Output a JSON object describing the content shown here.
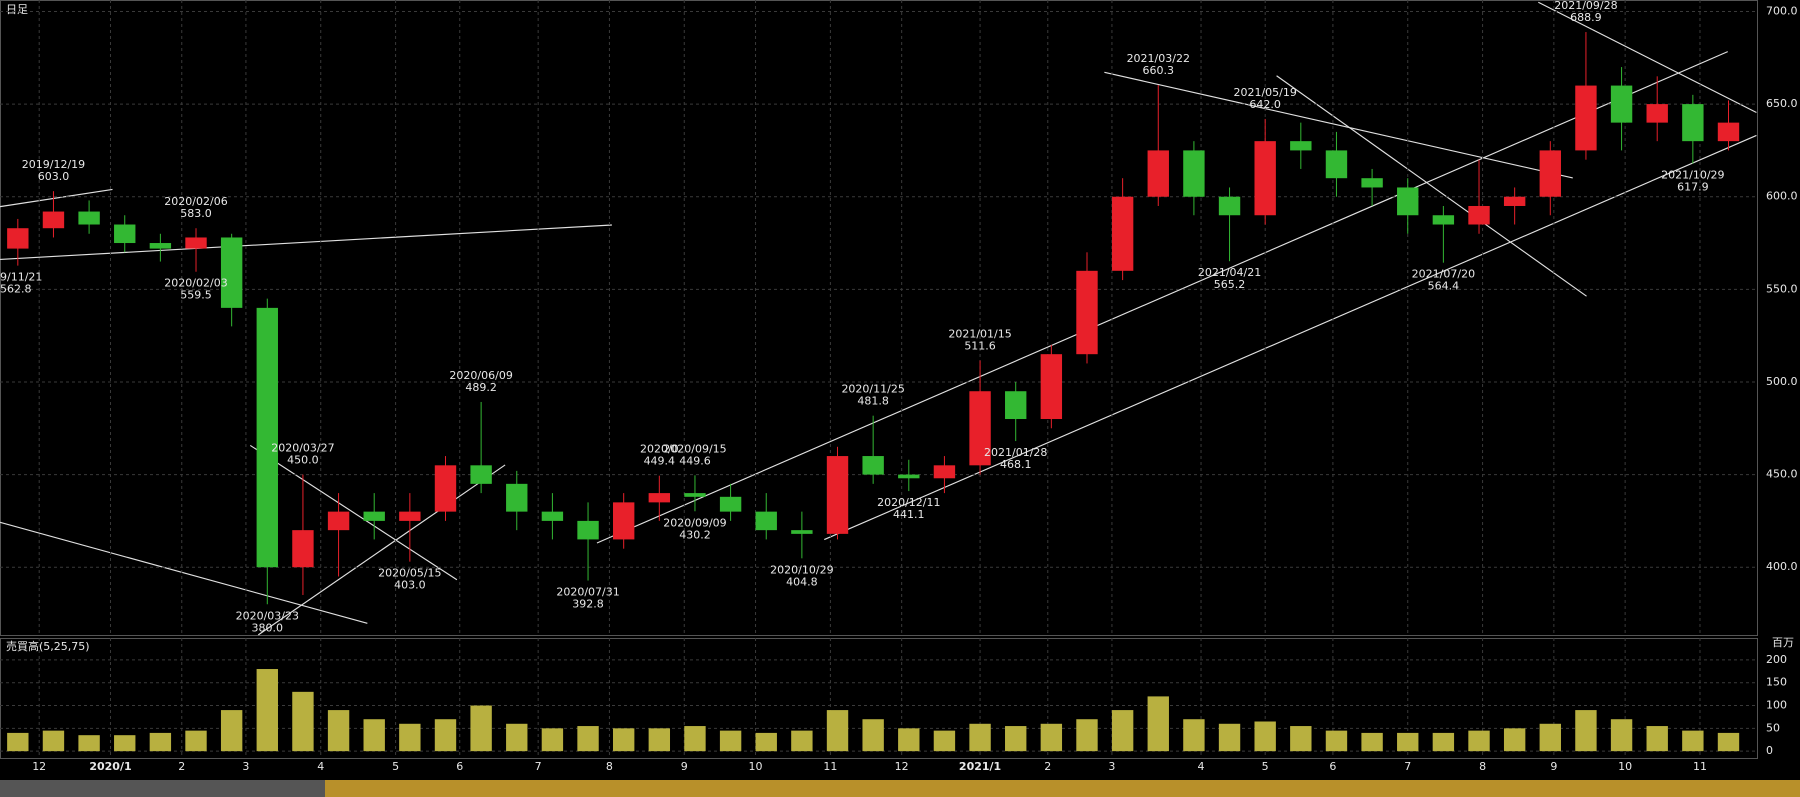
{
  "chart_data": [
    {
      "type": "candlestick",
      "panel_label": "日足",
      "open": [
        572,
        583,
        592,
        585,
        575,
        572,
        578,
        540,
        400,
        420,
        430,
        425,
        430,
        455,
        445,
        430,
        425,
        415,
        435,
        440,
        438,
        430,
        420,
        418,
        460,
        450,
        448,
        455,
        495,
        480,
        515,
        560,
        600,
        625,
        600,
        590,
        630,
        625,
        610,
        605,
        590,
        585,
        595,
        600,
        625,
        660,
        640,
        650,
        630
      ],
      "high": [
        588,
        603,
        598,
        590,
        580,
        583,
        580,
        545,
        450,
        440,
        440,
        440,
        460,
        489.2,
        452,
        440,
        435,
        440,
        449.4,
        449.6,
        445,
        440,
        430,
        465,
        481.8,
        458,
        460,
        511.6,
        500,
        520,
        570,
        610,
        660.3,
        630,
        605,
        642,
        640,
        635,
        615,
        610,
        595,
        620,
        605,
        630,
        688.9,
        670,
        665,
        655,
        652
      ],
      "low": [
        562.8,
        578,
        580,
        570,
        565,
        559.5,
        530,
        380,
        385,
        395,
        415,
        403,
        425,
        440,
        420,
        415,
        392.8,
        410,
        425,
        430.2,
        425,
        415,
        404.8,
        415,
        445,
        441.1,
        440,
        450,
        468.1,
        475,
        510,
        555,
        595,
        590,
        565.2,
        585,
        615,
        600,
        595,
        580,
        564.4,
        580,
        585,
        590,
        620,
        625,
        630,
        617.9,
        625
      ],
      "close": [
        583,
        592,
        585,
        575,
        572,
        578,
        540,
        400,
        420,
        430,
        425,
        430,
        455,
        445,
        430,
        425,
        415,
        435,
        440,
        438,
        430,
        420,
        418,
        460,
        450,
        448,
        455,
        495,
        480,
        515,
        560,
        600,
        625,
        600,
        590,
        630,
        625,
        610,
        605,
        590,
        585,
        595,
        600,
        625,
        660,
        640,
        650,
        630,
        640
      ],
      "up_color": "#e8202a",
      "down_color": "#33b833",
      "xlim": [
        -0.5,
        48.8
      ],
      "ylim": [
        363.4,
        706.2
      ],
      "yticks": [
        {
          "value": 400,
          "label": "400.0"
        },
        {
          "value": 450,
          "label": "450.0"
        },
        {
          "value": 500,
          "label": "500.0"
        },
        {
          "value": 550,
          "label": "550.0"
        },
        {
          "value": 600,
          "label": "600.0"
        },
        {
          "value": 650,
          "label": "650.0"
        },
        {
          "value": 700,
          "label": "700.0"
        }
      ],
      "grid": true,
      "annotations": [
        {
          "date": "9/11/21",
          "value": 562.8,
          "value_label": "562.8"
        },
        {
          "date": "2019/12/19",
          "value": 603,
          "value_label": "603.0"
        },
        {
          "date": "2020/02/06",
          "value": 583,
          "value_label": "583.0"
        },
        {
          "date": "2020/02/03",
          "value": 559.5,
          "value_label": "559.5"
        },
        {
          "date": "2020/03/27",
          "value": 450,
          "value_label": "450.0"
        },
        {
          "date": "2020/03/23",
          "value": 380,
          "value_label": "380.0"
        },
        {
          "date": "2020/05/15",
          "value": 403,
          "value_label": "403.0"
        },
        {
          "date": "2020/06/09",
          "value": 489.2,
          "value_label": "489.2"
        },
        {
          "date": "2020/07/31",
          "value": 392.8,
          "value_label": "392.8"
        },
        {
          "date": "2020/0",
          "value": 449.4,
          "value_label": "449.4"
        },
        {
          "date": "2020/09/15",
          "value": 449.6,
          "value_label": "449.6"
        },
        {
          "date": "2020/09/09",
          "value": 430.2,
          "value_label": "430.2"
        },
        {
          "date": "2020/10/29",
          "value": 404.8,
          "value_label": "404.8"
        },
        {
          "date": "2020/11/25",
          "value": 481.8,
          "value_label": "481.8"
        },
        {
          "date": "2020/12/11",
          "value": 441.1,
          "value_label": "441.1"
        },
        {
          "date": "2021/01/15",
          "value": 511.6,
          "value_label": "511.6"
        },
        {
          "date": "2021/01/28",
          "value": 468.1,
          "value_label": "468.1"
        },
        {
          "date": "2021/03/22",
          "value": 660.3,
          "value_label": "660.3"
        },
        {
          "date": "2021/04/21",
          "value": 565.2,
          "value_label": "565.2"
        },
        {
          "date": "2021/05/19",
          "value": 642,
          "value_label": "642.0"
        },
        {
          "date": "2021/07/20",
          "value": 564.4,
          "value_label": "564.4"
        },
        {
          "date": "2021/09/28",
          "value": 688.9,
          "value_label": "688.9"
        },
        {
          "date": "2021/10/29",
          "value": 617.9,
          "value_label": "617.9"
        }
      ]
    },
    {
      "type": "bar",
      "panel_label": "売買高(5,25,75)",
      "unit": "百万",
      "color": "#b8b040",
      "values": [
        40,
        45,
        35,
        35,
        40,
        45,
        90,
        180,
        130,
        90,
        70,
        60,
        70,
        100,
        60,
        50,
        55,
        50,
        50,
        55,
        45,
        40,
        45,
        90,
        70,
        50,
        45,
        60,
        55,
        60,
        70,
        90,
        120,
        70,
        60,
        65,
        55,
        45,
        40,
        40,
        40,
        45,
        50,
        60,
        90,
        70,
        55,
        45,
        40
      ],
      "xlim": [
        -0.5,
        48.8
      ],
      "ylim": [
        -15,
        248
      ],
      "yticks": [
        0,
        50,
        100,
        150,
        200
      ],
      "grid": true,
      "xticks": [
        {
          "value": 0.6,
          "label": "12"
        },
        {
          "value": 2.6,
          "label": "2020/1"
        },
        {
          "value": 4.6,
          "label": "2"
        },
        {
          "value": 6.4,
          "label": "3"
        },
        {
          "value": 8.5,
          "label": "4"
        },
        {
          "value": 10.6,
          "label": "5"
        },
        {
          "value": 12.4,
          "label": "6"
        },
        {
          "value": 14.6,
          "label": "7"
        },
        {
          "value": 16.6,
          "label": "8"
        },
        {
          "value": 18.7,
          "label": "9"
        },
        {
          "value": 20.7,
          "label": "10"
        },
        {
          "value": 22.8,
          "label": "11"
        },
        {
          "value": 24.8,
          "label": "12"
        },
        {
          "value": 27,
          "label": "2021/1"
        },
        {
          "value": 28.9,
          "label": "2"
        },
        {
          "value": 30.7,
          "label": "3"
        },
        {
          "value": 33.2,
          "label": "4"
        },
        {
          "value": 35,
          "label": "5"
        },
        {
          "value": 36.9,
          "label": "6"
        },
        {
          "value": 39,
          "label": "7"
        },
        {
          "value": 41.1,
          "label": "8"
        },
        {
          "value": 43.1,
          "label": "9"
        },
        {
          "value": 45.1,
          "label": "10"
        },
        {
          "value": 47.2,
          "label": "11"
        }
      ]
    }
  ]
}
